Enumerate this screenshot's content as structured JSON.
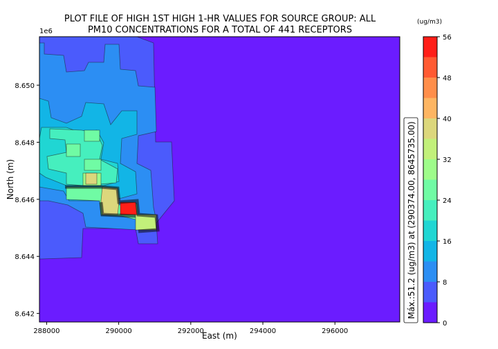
{
  "chart_data": {
    "type": "heatmap",
    "title": [
      "PLOT FILE OF HIGH 1ST HIGH  1-HR VALUES FOR SOURCE GROUP: ALL",
      "PM10 CONCENTRATIONS FOR A TOTAL OF 441 RECEPTORS"
    ],
    "xlabel": "East (m)",
    "ylabel": "North (m)",
    "y_offset_label": "1e6",
    "xlim": [
      287800,
      297800
    ],
    "ylim": [
      8641700,
      8651700
    ],
    "x_ticks": [
      288000,
      290000,
      292000,
      294000,
      296000
    ],
    "x_tick_labels": [
      "288000",
      "290000",
      "292000",
      "294000",
      "296000"
    ],
    "y_ticks": [
      8642000,
      8644000,
      8646000,
      8648000,
      8650000
    ],
    "y_tick_labels": [
      "8.642",
      "8.644",
      "8.646",
      "8.648",
      "8.650"
    ],
    "colorbar": {
      "unit_label": "(ug/m3)",
      "levels": [
        0,
        4,
        8,
        12,
        16,
        20,
        24,
        28,
        32,
        36,
        40,
        44,
        48,
        52,
        56
      ],
      "tick_values": [
        0,
        8,
        16,
        24,
        32,
        40,
        48,
        56
      ],
      "tick_labels": [
        "0",
        "8",
        "16",
        "24",
        "32",
        "40",
        "48",
        "56"
      ],
      "colors": [
        "#6b1cff",
        "#4b5bfc",
        "#2c8ef3",
        "#12b5e6",
        "#20d6d3",
        "#46efbe",
        "#70fba4",
        "#9efc8a",
        "#c2f07a",
        "#dcd77c",
        "#fdb562",
        "#ff8e4a",
        "#ff5a32",
        "#ff1e18"
      ]
    },
    "max_annotation": "Máx.:51.2 (ug/m3) at (290374.00, 8645735.00)",
    "max_value": 51.2,
    "max_location": [
      290374.0,
      8645735.0
    ],
    "grid": false
  }
}
